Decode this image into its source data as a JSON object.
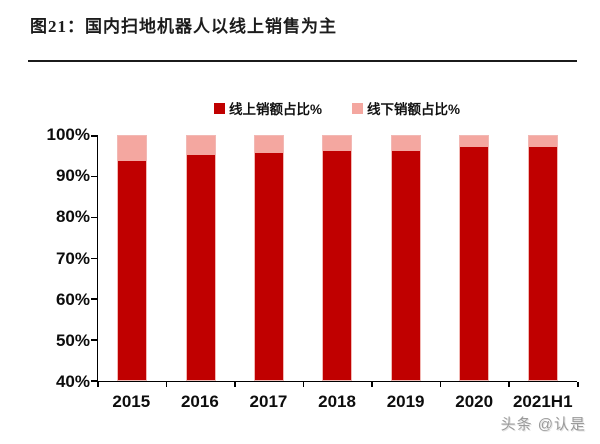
{
  "header": {
    "title": "图21：国内扫地机器人以线上销售为主"
  },
  "watermark": "头条 @认是",
  "colors": {
    "online_red": "#C00000",
    "offline_pink": "#F4A7A0",
    "axis_black": "#000000",
    "divider_black": "#1B1B1B",
    "watermark_gray": "#9B9B9B"
  },
  "chart_data": {
    "type": "bar",
    "stacked": true,
    "title": "国内扫地机器人以线上销售为主",
    "categories": [
      "2015",
      "2016",
      "2017",
      "2018",
      "2019",
      "2020",
      "2021H1"
    ],
    "series": [
      {
        "name": "线上销额占比%",
        "color": "#C00000",
        "values": [
          93.8,
          95.4,
          95.8,
          96.4,
          96.2,
          97.4,
          97.2
        ]
      },
      {
        "name": "线下销额占比%",
        "color": "#F4A7A0",
        "values": [
          6.2,
          4.6,
          4.2,
          3.6,
          3.8,
          2.6,
          2.8
        ]
      }
    ],
    "xlabel": "",
    "ylabel": "",
    "ylim": [
      40,
      100
    ],
    "yticks": [
      "100%",
      "90%",
      "80%",
      "70%",
      "60%",
      "50%",
      "40%"
    ],
    "legend_position": "top-center",
    "grid": false
  }
}
